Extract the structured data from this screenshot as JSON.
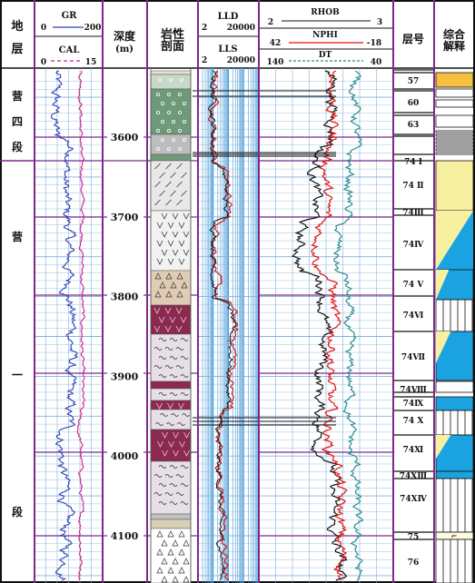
{
  "headers": {
    "formation": [
      "地",
      "层"
    ],
    "gr": {
      "name": "GR",
      "min": "0",
      "max": "200"
    },
    "cal": {
      "name": "CAL",
      "min": "0",
      "max": "15"
    },
    "depth": {
      "name": "深度",
      "unit": "(m)"
    },
    "lith": [
      "岩性",
      "剖面"
    ],
    "lld": {
      "name": "LLD",
      "min": "2",
      "max": "20000"
    },
    "lls": {
      "name": "LLS",
      "min": "2",
      "max": "20000"
    },
    "rhob": {
      "name": "RHOB",
      "min": "2",
      "max": "3"
    },
    "nphi": {
      "name": "NPHI",
      "min": "42",
      "max": "-18"
    },
    "dt": {
      "name": "DT",
      "min": "140",
      "max": "40"
    },
    "layer_no": "层号",
    "interp": [
      "综合",
      "解释"
    ]
  },
  "formations": [
    {
      "chars": [
        "营",
        "四",
        "段"
      ]
    },
    {
      "chars": [
        "营",
        "一",
        "段"
      ]
    }
  ],
  "depth_labels": [
    "3600",
    "3700",
    "3800",
    "3900",
    "4000",
    "4100"
  ],
  "layers": [
    "57",
    "60",
    "63",
    "74 Ⅰ",
    "74 Ⅱ",
    "74Ⅲ",
    "74Ⅳ",
    "74 Ⅴ",
    "74Ⅵ",
    "74Ⅶ",
    "74Ⅷ",
    "74Ⅸ",
    "74 Ⅹ",
    "74Ⅺ",
    "74ⅩⅢ",
    "74ⅩⅣ",
    "75",
    "76"
  ],
  "colors": {
    "frame": "#7b2a8c",
    "gr": "#2b3fb0",
    "cal": "#d0208a",
    "lld": "#d01818",
    "lls": "#111111",
    "rhob": "#111111",
    "nphi": "#e01010",
    "dt": "#2a8c8c",
    "oil": "#f5c040",
    "water": "#1aa3e0",
    "dry": "#f7f0a0"
  }
}
